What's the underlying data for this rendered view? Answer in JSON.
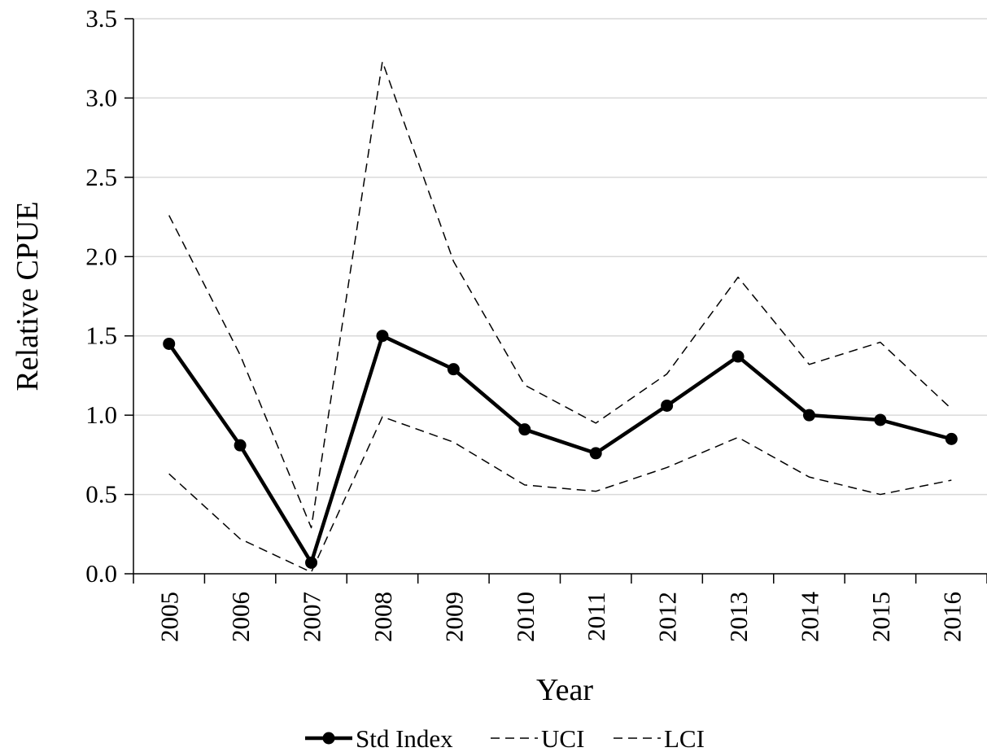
{
  "chart_data": {
    "type": "line",
    "title": "",
    "xlabel": "Year",
    "ylabel": "Relative CPUE",
    "categories": [
      "2005",
      "2006",
      "2007",
      "2008",
      "2009",
      "2010",
      "2011",
      "2012",
      "2013",
      "2014",
      "2015",
      "2016"
    ],
    "ylim": [
      0,
      3.5
    ],
    "yticks": [
      "0.0",
      "0.5",
      "1.0",
      "1.5",
      "2.0",
      "2.5",
      "3.0",
      "3.5"
    ],
    "grid": true,
    "legend_position": "bottom",
    "series": [
      {
        "name": "Std Index",
        "style": "solid-markers",
        "color": "#000000",
        "values": [
          1.45,
          0.81,
          0.07,
          1.5,
          1.29,
          0.91,
          0.76,
          1.06,
          1.37,
          1.0,
          0.97,
          0.85
        ]
      },
      {
        "name": "UCI",
        "style": "dashed",
        "color": "#000000",
        "values": [
          2.26,
          1.38,
          0.29,
          3.23,
          1.97,
          1.19,
          0.95,
          1.26,
          1.87,
          1.32,
          1.46,
          1.04
        ]
      },
      {
        "name": "LCI",
        "style": "dashed",
        "color": "#000000",
        "values": [
          0.63,
          0.22,
          0.01,
          0.99,
          0.83,
          0.56,
          0.52,
          0.67,
          0.86,
          0.61,
          0.5,
          0.59
        ]
      }
    ]
  }
}
